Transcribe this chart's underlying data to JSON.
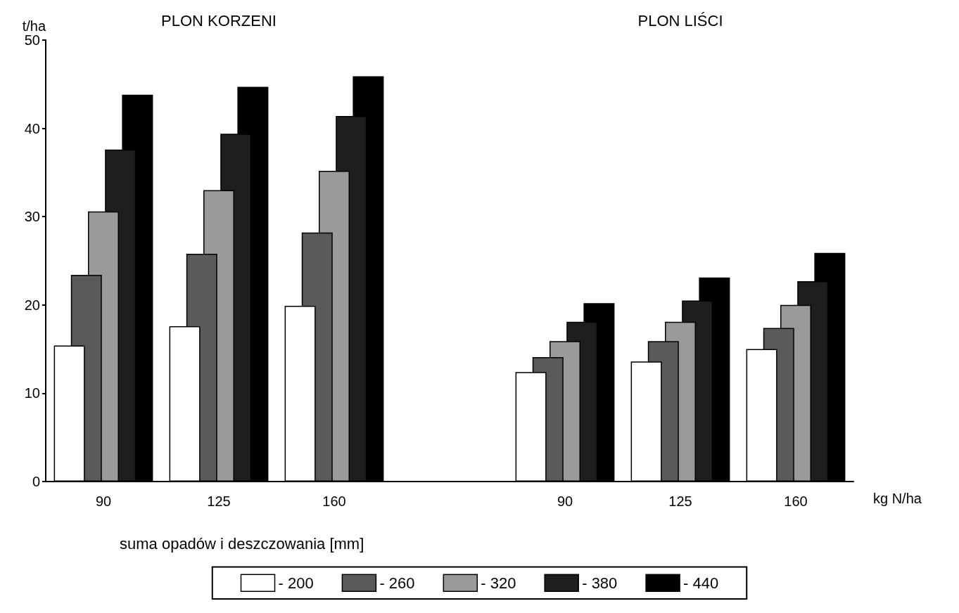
{
  "chart_data": {
    "type": "bar",
    "categories": [
      "90",
      "125",
      "160",
      null,
      "90",
      "125",
      "160"
    ],
    "series": [
      {
        "name": "- 200",
        "color": "#ffffff",
        "values": [
          15.4,
          17.6,
          19.9,
          null,
          12.4,
          13.6,
          15.0
        ]
      },
      {
        "name": "- 260",
        "color": "#5a5a5a",
        "values": [
          23.4,
          25.8,
          28.2,
          null,
          14.1,
          15.9,
          17.4
        ]
      },
      {
        "name": "- 320",
        "color": "#9a9a9a",
        "values": [
          30.6,
          33.0,
          35.2,
          null,
          15.9,
          18.1,
          20.0
        ]
      },
      {
        "name": "- 380",
        "color": "#1e1e1e",
        "values": [
          37.6,
          39.4,
          41.4,
          null,
          18.1,
          20.5,
          22.7
        ]
      },
      {
        "name": "- 440",
        "color": "#000000",
        "values": [
          43.8,
          44.7,
          45.9,
          null,
          20.2,
          23.1,
          25.9
        ]
      }
    ],
    "ylim": [
      0,
      50
    ],
    "yticks": [
      0,
      10,
      20,
      30,
      40,
      50
    ],
    "ylabel": "t/ha",
    "xlabel": "kg N/ha",
    "legend_title": "suma opadów i deszczowania [mm]",
    "annotations": [
      "PLON KORZENI",
      "PLON LIŚCI"
    ],
    "grid": false,
    "legend": "bottom"
  }
}
